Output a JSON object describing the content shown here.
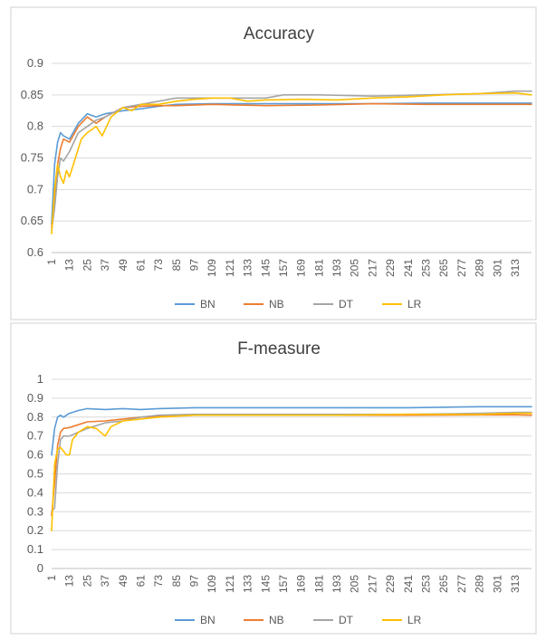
{
  "chart_data": [
    {
      "type": "line",
      "title": "Accuracy",
      "ylim": [
        0.6,
        0.9
      ],
      "yticks": [
        "0.6",
        "0.65",
        "0.7",
        "0.75",
        "0.8",
        "0.85",
        "0.9"
      ],
      "xtick_labels": [
        "1",
        "13",
        "25",
        "37",
        "49",
        "61",
        "73",
        "85",
        "97",
        "109",
        "121",
        "133",
        "145",
        "157",
        "169",
        "181",
        "193",
        "205",
        "217",
        "229",
        "241",
        "253",
        "265",
        "277",
        "289",
        "301",
        "313"
      ],
      "x_range": [
        1,
        324
      ],
      "grid": true,
      "legend_position": "bottom",
      "legend": [
        "BN",
        "NB",
        "DT",
        "LR"
      ],
      "series": [
        {
          "name": "BN",
          "color": "#5b9bd5",
          "x": [
            1,
            3,
            5,
            7,
            9,
            13,
            19,
            25,
            31,
            37,
            49,
            61,
            73,
            85,
            109,
            145,
            181,
            217,
            253,
            289,
            313,
            324
          ],
          "y": [
            0.645,
            0.74,
            0.775,
            0.79,
            0.785,
            0.78,
            0.805,
            0.82,
            0.815,
            0.82,
            0.825,
            0.828,
            0.832,
            0.835,
            0.836,
            0.836,
            0.836,
            0.836,
            0.837,
            0.837,
            0.837,
            0.837
          ]
        },
        {
          "name": "NB",
          "color": "#ed7d31",
          "x": [
            1,
            3,
            5,
            7,
            9,
            13,
            19,
            25,
            31,
            37,
            49,
            61,
            73,
            85,
            109,
            145,
            181,
            217,
            253,
            289,
            313,
            324
          ],
          "y": [
            0.64,
            0.68,
            0.74,
            0.765,
            0.78,
            0.775,
            0.8,
            0.815,
            0.805,
            0.815,
            0.83,
            0.832,
            0.833,
            0.833,
            0.835,
            0.833,
            0.834,
            0.836,
            0.835,
            0.835,
            0.835,
            0.835
          ]
        },
        {
          "name": "DT",
          "color": "#a5a5a5",
          "x": [
            1,
            3,
            5,
            7,
            9,
            13,
            19,
            25,
            31,
            37,
            49,
            61,
            73,
            85,
            109,
            145,
            157,
            181,
            217,
            253,
            289,
            313,
            324
          ],
          "y": [
            0.635,
            0.67,
            0.72,
            0.75,
            0.745,
            0.76,
            0.79,
            0.8,
            0.81,
            0.815,
            0.83,
            0.835,
            0.84,
            0.845,
            0.845,
            0.845,
            0.85,
            0.85,
            0.848,
            0.85,
            0.852,
            0.856,
            0.856
          ]
        },
        {
          "name": "LR",
          "color": "#ffc000",
          "x": [
            1,
            3,
            5,
            7,
            9,
            11,
            13,
            17,
            21,
            25,
            31,
            35,
            41,
            49,
            55,
            61,
            73,
            85,
            97,
            109,
            121,
            133,
            145,
            169,
            193,
            217,
            241,
            265,
            289,
            313,
            324
          ],
          "y": [
            0.63,
            0.7,
            0.74,
            0.72,
            0.71,
            0.73,
            0.72,
            0.75,
            0.78,
            0.79,
            0.8,
            0.785,
            0.815,
            0.83,
            0.825,
            0.835,
            0.835,
            0.84,
            0.843,
            0.845,
            0.845,
            0.84,
            0.842,
            0.843,
            0.842,
            0.845,
            0.847,
            0.85,
            0.852,
            0.853,
            0.85
          ]
        }
      ]
    },
    {
      "type": "line",
      "title": "F-measure",
      "ylim": [
        0,
        1
      ],
      "yticks": [
        "0",
        "0.1",
        "0.2",
        "0.3",
        "0.4",
        "0.5",
        "0.6",
        "0.7",
        "0.8",
        "0.9",
        "1"
      ],
      "xtick_labels": [
        "1",
        "13",
        "25",
        "37",
        "49",
        "61",
        "73",
        "85",
        "97",
        "109",
        "121",
        "133",
        "145",
        "157",
        "169",
        "181",
        "193",
        "205",
        "217",
        "229",
        "241",
        "253",
        "265",
        "277",
        "289",
        "301",
        "313"
      ],
      "x_range": [
        1,
        324
      ],
      "grid": true,
      "legend_position": "bottom",
      "legend": [
        "BN",
        "NB",
        "DT",
        "LR"
      ],
      "series": [
        {
          "name": "BN",
          "color": "#5b9bd5",
          "x": [
            1,
            3,
            5,
            7,
            9,
            13,
            19,
            25,
            37,
            49,
            61,
            73,
            97,
            145,
            193,
            241,
            289,
            313,
            324
          ],
          "y": [
            0.6,
            0.74,
            0.8,
            0.81,
            0.8,
            0.82,
            0.835,
            0.845,
            0.84,
            0.845,
            0.84,
            0.845,
            0.85,
            0.85,
            0.85,
            0.85,
            0.855,
            0.855,
            0.855
          ]
        },
        {
          "name": "NB",
          "color": "#ed7d31",
          "x": [
            1,
            3,
            5,
            7,
            9,
            13,
            19,
            25,
            37,
            49,
            61,
            73,
            97,
            145,
            193,
            241,
            289,
            313,
            324
          ],
          "y": [
            0.28,
            0.45,
            0.65,
            0.72,
            0.74,
            0.745,
            0.76,
            0.775,
            0.78,
            0.79,
            0.8,
            0.805,
            0.81,
            0.81,
            0.81,
            0.81,
            0.812,
            0.812,
            0.81
          ]
        },
        {
          "name": "DT",
          "color": "#a5a5a5",
          "x": [
            1,
            3,
            5,
            7,
            9,
            13,
            19,
            25,
            37,
            49,
            61,
            73,
            97,
            145,
            193,
            241,
            289,
            313,
            324
          ],
          "y": [
            0.3,
            0.32,
            0.55,
            0.68,
            0.7,
            0.7,
            0.72,
            0.74,
            0.77,
            0.78,
            0.8,
            0.81,
            0.815,
            0.815,
            0.815,
            0.815,
            0.82,
            0.825,
            0.825
          ]
        },
        {
          "name": "LR",
          "color": "#ffc000",
          "x": [
            1,
            3,
            5,
            7,
            9,
            11,
            13,
            15,
            19,
            25,
            31,
            37,
            41,
            49,
            61,
            73,
            97,
            145,
            193,
            241,
            289,
            313,
            324
          ],
          "y": [
            0.2,
            0.55,
            0.63,
            0.64,
            0.62,
            0.6,
            0.6,
            0.68,
            0.72,
            0.75,
            0.74,
            0.7,
            0.75,
            0.78,
            0.79,
            0.8,
            0.81,
            0.81,
            0.81,
            0.815,
            0.815,
            0.82,
            0.82
          ]
        }
      ]
    }
  ]
}
